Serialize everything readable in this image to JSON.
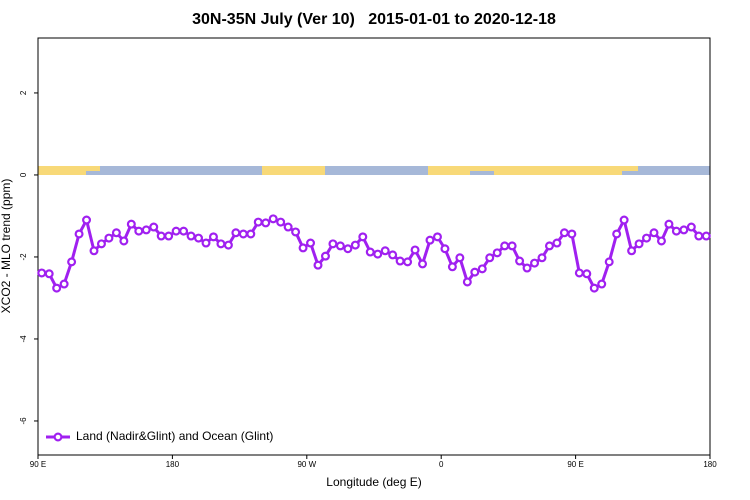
{
  "chart_data": {
    "type": "line",
    "title": "30N-35N July (Ver 10)   2015-01-01 to 2020-12-18",
    "x_label": "Longitude (deg E)",
    "y_label": "XCO2 - MLO trend (ppm)",
    "xlim": [
      90,
      540
    ],
    "ylim": [
      -6.83,
      3.34
    ],
    "xticks": [
      {
        "value": 90,
        "label": "90 E"
      },
      180,
      {
        "value": 270,
        "label": "90 W"
      },
      {
        "value": 360,
        "label": "0"
      },
      {
        "value": 450,
        "label": "90 E"
      },
      {
        "value": 540,
        "label": "180"
      }
    ],
    "yticks": [
      -6,
      -4,
      -2,
      0,
      2
    ],
    "legend": "bottom-left",
    "x": [
      92.5,
      97.5,
      102.5,
      107.5,
      112.5,
      117.5,
      122.5,
      127.5,
      132.5,
      137.5,
      142.5,
      147.5,
      152.5,
      157.5,
      162.5,
      167.5,
      172.5,
      177.5,
      182.5,
      187.5,
      192.5,
      197.5,
      202.5,
      207.5,
      212.5,
      217.5,
      222.5,
      227.5,
      232.5,
      237.5,
      242.5,
      247.5,
      252.5,
      257.5,
      262.5,
      267.5,
      272.5,
      277.5,
      282.5,
      287.5,
      292.5,
      297.5,
      302.5,
      307.5,
      312.5,
      317.5,
      322.5,
      327.5,
      332.5,
      337.5,
      342.5,
      347.5,
      352.5,
      357.5,
      362.5,
      367.5,
      372.5,
      377.5,
      382.5,
      387.5,
      392.5,
      397.5,
      402.5,
      407.5,
      412.5,
      417.5,
      422.5,
      427.5,
      432.5,
      437.5,
      442.5,
      447.5,
      452.5,
      457.5,
      462.5,
      467.5,
      472.5,
      477.5,
      482.5,
      487.5,
      492.5,
      497.5,
      502.5,
      507.5,
      512.5,
      517.5,
      522.5,
      527.5,
      532.5,
      537.5
    ],
    "series": [
      {
        "name": "Land (Nadir&Glint) and Ocean (Glint)",
        "color": "#a020f0",
        "values": [
          -2.39,
          -2.41,
          -2.76,
          -2.66,
          -2.12,
          -1.44,
          -1.1,
          -1.85,
          -1.68,
          -1.54,
          -1.41,
          -1.61,
          -1.2,
          -1.37,
          -1.34,
          -1.27,
          -1.49,
          -1.49,
          -1.37,
          -1.37,
          -1.49,
          -1.54,
          -1.66,
          -1.51,
          -1.68,
          -1.71,
          -1.41,
          -1.44,
          -1.44,
          -1.15,
          -1.17,
          -1.07,
          -1.15,
          -1.27,
          -1.39,
          -1.78,
          -1.66,
          -2.2,
          -1.98,
          -1.68,
          -1.73,
          -1.8,
          -1.71,
          -1.51,
          -1.88,
          -1.93,
          -1.85,
          -1.95,
          -2.1,
          -2.12,
          -1.83,
          -2.17,
          -1.59,
          -1.51,
          -1.8,
          -2.24,
          -2.02,
          -2.61,
          -2.37,
          -2.29,
          -2.02,
          -1.9,
          -1.73,
          -1.73,
          -2.1,
          -2.27,
          -2.15,
          -2.02,
          -1.73,
          -1.66,
          -1.41,
          -1.44,
          -2.39,
          -2.41,
          -2.76,
          -2.66,
          -2.12,
          -1.44,
          -1.1,
          -1.85,
          -1.68,
          -1.54,
          -1.41,
          -1.61,
          -1.2,
          -1.37,
          -1.34,
          -1.27,
          -1.49,
          -1.49
        ]
      }
    ]
  }
}
